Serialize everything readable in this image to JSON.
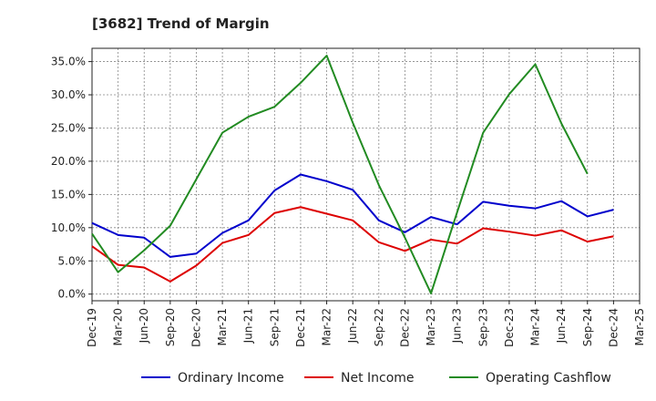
{
  "chart_data": {
    "type": "line",
    "title": "[3682]  Trend of Margin",
    "xlabel": "",
    "ylabel": "",
    "categories": [
      "Dec-19",
      "Mar-20",
      "Jun-20",
      "Sep-20",
      "Dec-20",
      "Mar-21",
      "Jun-21",
      "Sep-21",
      "Dec-21",
      "Mar-22",
      "Jun-22",
      "Sep-22",
      "Dec-22",
      "Mar-23",
      "Jun-23",
      "Sep-23",
      "Dec-23",
      "Mar-24",
      "Jun-24",
      "Sep-24",
      "Dec-24",
      "Mar-25"
    ],
    "ylim": [
      -1,
      37
    ],
    "yticks": [
      0,
      5,
      10,
      15,
      20,
      25,
      30,
      35
    ],
    "ytick_labels": [
      "0.0%",
      "5.0%",
      "10.0%",
      "15.0%",
      "20.0%",
      "25.0%",
      "30.0%",
      "35.0%"
    ],
    "grid": true,
    "legend_position": "bottom",
    "series": [
      {
        "name": "Ordinary Income",
        "color": "#0000cc",
        "values": [
          10.7,
          8.9,
          8.5,
          5.6,
          6.1,
          9.2,
          11.1,
          15.6,
          18.0,
          17.0,
          15.7,
          11.1,
          9.3,
          11.6,
          10.5,
          13.9,
          13.3,
          12.9,
          14.0,
          11.7,
          12.7,
          null
        ]
      },
      {
        "name": "Net Income",
        "color": "#dd0000",
        "values": [
          7.2,
          4.4,
          4.0,
          1.9,
          4.3,
          7.7,
          8.9,
          12.2,
          13.1,
          12.1,
          11.1,
          7.8,
          6.5,
          8.2,
          7.6,
          9.9,
          9.4,
          8.8,
          9.6,
          7.9,
          8.7,
          null
        ]
      },
      {
        "name": "Operating Cashflow",
        "color": "#228b22",
        "values": [
          9.1,
          3.3,
          6.6,
          10.3,
          17.3,
          24.3,
          26.7,
          28.2,
          31.8,
          35.9,
          25.8,
          16.4,
          8.5,
          0.1,
          12.3,
          24.3,
          30.1,
          34.6,
          25.7,
          18.1,
          null,
          null
        ]
      }
    ]
  }
}
